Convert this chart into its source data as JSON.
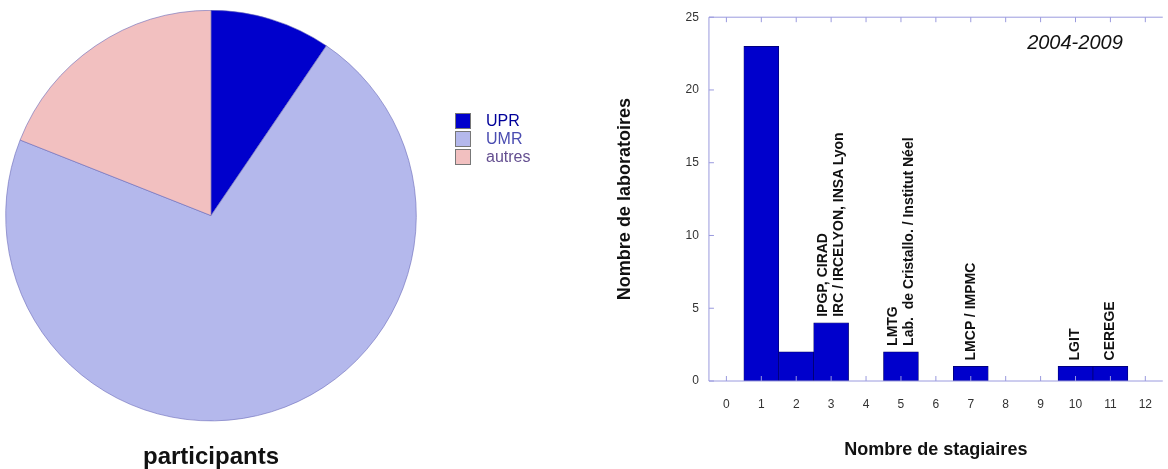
{
  "chart_data": [
    {
      "type": "pie",
      "title": "participants",
      "categories": [
        "UPR",
        "UMR",
        "autres"
      ],
      "values": [
        9.5,
        71.5,
        19
      ],
      "colors": [
        "#0000cc",
        "#b4b8ec",
        "#f2c0c0"
      ],
      "legend": "right"
    },
    {
      "type": "histogram",
      "title": "2004-2009",
      "xlabel": "Nombre de stagiaires",
      "ylabel": "Nombre de laboratoires",
      "bins": [
        0.5,
        1.5,
        2.5,
        3.5,
        4.5,
        5.5,
        6.5,
        7.5,
        8.5,
        9.5,
        10.5,
        11.5
      ],
      "values": [
        23,
        2,
        4,
        0,
        2,
        0,
        1,
        0,
        0,
        1,
        1
      ],
      "color": "#0000cc",
      "xlim": [
        -0.5,
        12.5
      ],
      "xticks": [
        0,
        1,
        2,
        3,
        4,
        5,
        6,
        7,
        8,
        9,
        10,
        11,
        12
      ],
      "ylim": [
        0,
        25
      ],
      "yticks": [
        0,
        5,
        10,
        15,
        20,
        25
      ],
      "grid": false,
      "legend": false,
      "annotations": [
        {
          "text": "IPGP, CIRAD",
          "x": 3,
          "y": 4
        },
        {
          "text": "IRC / IRCELYON, INSA Lyon",
          "x": 3,
          "y": 4
        },
        {
          "text": "LMTG",
          "x": 5,
          "y": 2
        },
        {
          "text": "Lab.  de Cristallo. / Institut Néel",
          "x": 5,
          "y": 2
        },
        {
          "text": "LMCP / IMPMC",
          "x": 7,
          "y": 1
        },
        {
          "text": "LGIT",
          "x": 10,
          "y": 1
        },
        {
          "text": "CEREGE",
          "x": 11,
          "y": 1
        }
      ]
    }
  ]
}
